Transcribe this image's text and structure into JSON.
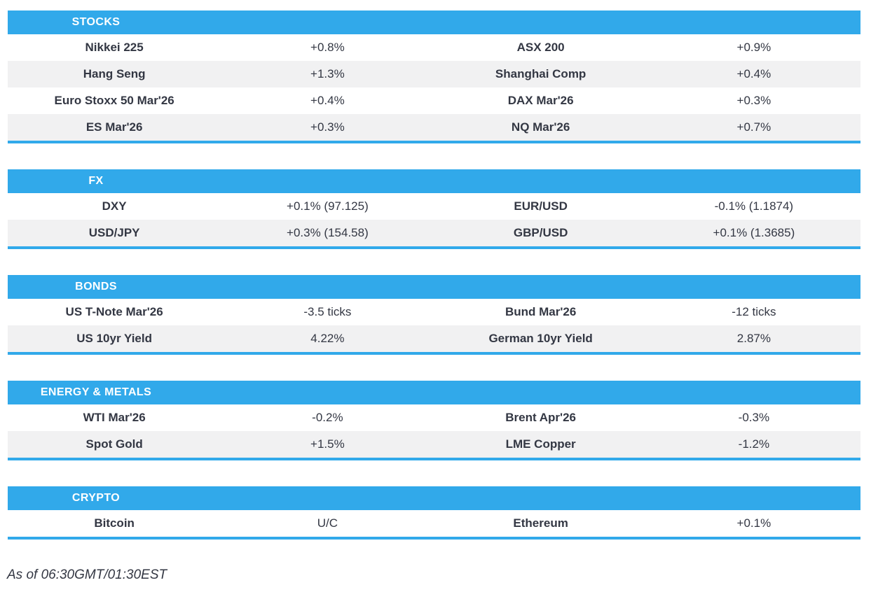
{
  "colors": {
    "accent_blue": "#31A9EA",
    "row_alt": "#F1F1F2",
    "text": "#333743"
  },
  "sections": [
    {
      "title": "STOCKS",
      "rows": [
        [
          {
            "name": "Nikkei 225",
            "value": "+0.8%"
          },
          {
            "name": "ASX 200",
            "value": "+0.9%"
          }
        ],
        [
          {
            "name": "Hang Seng",
            "value": "+1.3%"
          },
          {
            "name": "Shanghai Comp",
            "value": "+0.4%"
          }
        ],
        [
          {
            "name": "Euro Stoxx 50 Mar'26",
            "value": "+0.4%"
          },
          {
            "name": "DAX Mar'26",
            "value": "+0.3%"
          }
        ],
        [
          {
            "name": "ES Mar'26",
            "value": "+0.3%"
          },
          {
            "name": "NQ Mar'26",
            "value": "+0.7%"
          }
        ]
      ]
    },
    {
      "title": "FX",
      "rows": [
        [
          {
            "name": "DXY",
            "value": "+0.1% (97.125)"
          },
          {
            "name": "EUR/USD",
            "value": "-0.1% (1.1874)"
          }
        ],
        [
          {
            "name": "USD/JPY",
            "value": "+0.3% (154.58)"
          },
          {
            "name": "GBP/USD",
            "value": "+0.1% (1.3685)"
          }
        ]
      ]
    },
    {
      "title": "BONDS",
      "rows": [
        [
          {
            "name": "US T-Note Mar'26",
            "value": "-3.5 ticks"
          },
          {
            "name": "Bund Mar'26",
            "value": "-12 ticks"
          }
        ],
        [
          {
            "name": "US 10yr Yield",
            "value": "4.22%"
          },
          {
            "name": "German 10yr Yield",
            "value": "2.87%"
          }
        ]
      ]
    },
    {
      "title": "ENERGY & METALS",
      "rows": [
        [
          {
            "name": "WTI Mar'26",
            "value": "-0.2%"
          },
          {
            "name": "Brent Apr'26",
            "value": "-0.3%"
          }
        ],
        [
          {
            "name": "Spot Gold",
            "value": "+1.5%"
          },
          {
            "name": "LME Copper",
            "value": "-1.2%"
          }
        ]
      ]
    },
    {
      "title": "CRYPTO",
      "rows": [
        [
          {
            "name": "Bitcoin",
            "value": "U/C"
          },
          {
            "name": "Ethereum",
            "value": "+0.1%"
          }
        ]
      ]
    }
  ],
  "footer": {
    "as_of": "As of 06:30GMT/01:30EST"
  }
}
